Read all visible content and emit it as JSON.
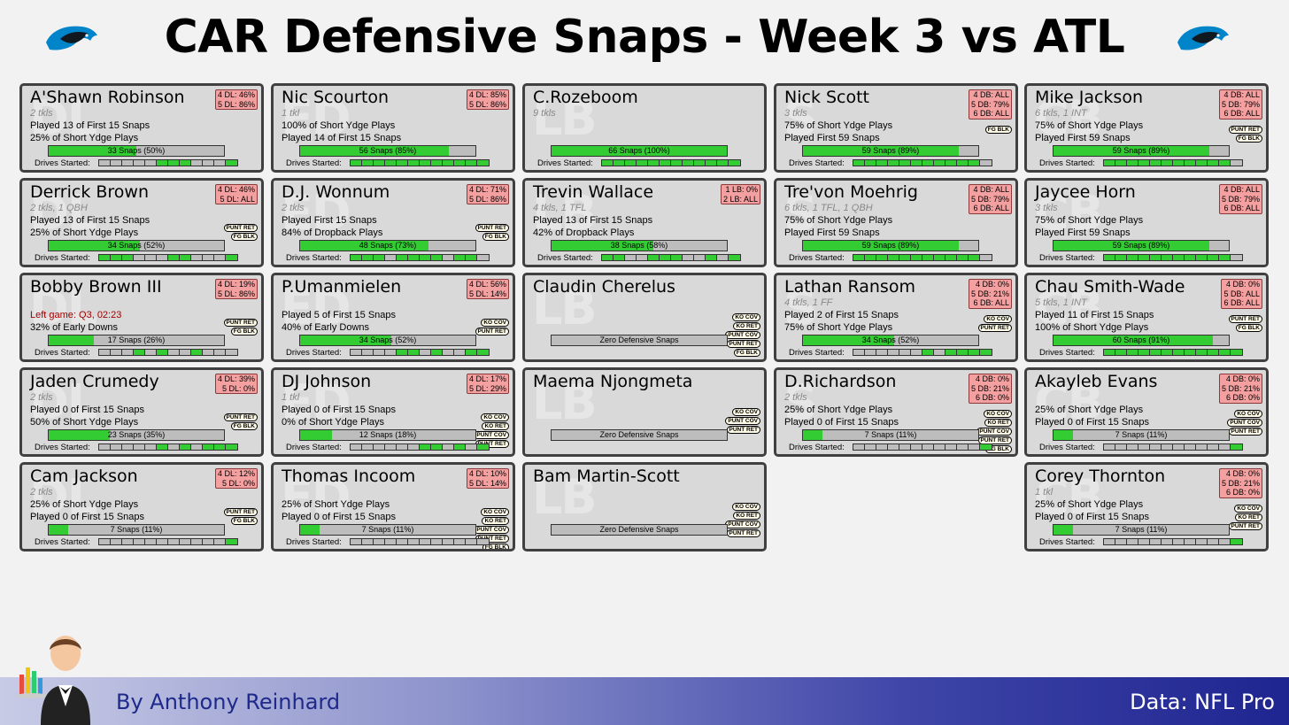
{
  "header": {
    "title": "CAR Defensive Snaps - Week 3 vs ATL"
  },
  "footer": {
    "author": "By Anthony Reinhard",
    "source": "Data: NFL Pro"
  },
  "colors": {
    "snap_fill": "#33cc33",
    "snap_empty": "#bdbdbd",
    "alloc_bg": "#f4a0a0",
    "card_bg": "#d9d9d9",
    "left_game": "#a00000",
    "footer_dark": "#1f2590"
  },
  "players": [
    {
      "name": "A'Shawn Robinson",
      "wm": "DL",
      "sub": "2 tkls",
      "l1": "Played 13 of First 15 Snaps",
      "l2": "25% of Short Ydge Plays",
      "alloc": [
        "4 DL: 46%",
        "5 DL: 86%"
      ],
      "badges": [],
      "snaps": "33 Snaps (50%)",
      "pct": 50,
      "drives": [
        0,
        0,
        0,
        0,
        0,
        1,
        1,
        1,
        0,
        0,
        0,
        1
      ]
    },
    {
      "name": "Nic Scourton",
      "wm": "ED",
      "sub": "1 tkl",
      "l1": "100% of Short Ydge Plays",
      "l2": "Played 14 of First 15 Snaps",
      "alloc": [
        "4 DL: 85%",
        "5 DL: 86%"
      ],
      "badges": [],
      "snaps": "56 Snaps (85%)",
      "pct": 85,
      "drives": [
        1,
        1,
        1,
        1,
        1,
        1,
        1,
        1,
        1,
        1,
        1,
        1
      ]
    },
    {
      "name": "C.Rozeboom",
      "wm": "LB",
      "sub": "9 tkls",
      "l1": "",
      "l2": "",
      "alloc": [],
      "badges": [],
      "snaps": "66 Snaps (100%)",
      "pct": 100,
      "drives": [
        1,
        1,
        1,
        1,
        1,
        1,
        1,
        1,
        1,
        1,
        1,
        1
      ]
    },
    {
      "name": "Nick Scott",
      "wm": "S",
      "sub": "3 tkls",
      "l1": "75% of Short Ydge Plays",
      "l2": "Played First 59 Snaps",
      "alloc": [
        "4 DB: ALL",
        "5 DB: 79%",
        "6 DB: ALL"
      ],
      "badges": [
        "FG BLK"
      ],
      "snaps": "59 Snaps (89%)",
      "pct": 89,
      "drives": [
        1,
        1,
        1,
        1,
        1,
        1,
        1,
        1,
        1,
        1,
        1,
        0
      ]
    },
    {
      "name": "Mike Jackson",
      "wm": "CB",
      "sub": "6 tkls, 1 INT",
      "l1": "75% of Short Ydge Plays",
      "l2": "Played First 59 Snaps",
      "alloc": [
        "4 DB: ALL",
        "5 DB: 79%",
        "6 DB: ALL"
      ],
      "badges": [
        "PUNT RET",
        "FG BLK"
      ],
      "snaps": "59 Snaps (89%)",
      "pct": 89,
      "drives": [
        1,
        1,
        1,
        1,
        1,
        1,
        1,
        1,
        1,
        1,
        1,
        0
      ]
    },
    {
      "name": "Derrick Brown",
      "wm": "DL",
      "sub": "2 tkls, 1 QBH",
      "l1": "Played 13 of First 15 Snaps",
      "l2": "25% of Short Ydge Plays",
      "alloc": [
        "4 DL: 46%",
        "5 DL: ALL"
      ],
      "badges": [
        "PUNT RET",
        "FG BLK"
      ],
      "snaps": "34 Snaps (52%)",
      "pct": 52,
      "drives": [
        1,
        1,
        1,
        0,
        0,
        0,
        1,
        1,
        0,
        0,
        0,
        1
      ]
    },
    {
      "name": "D.J. Wonnum",
      "wm": "ED",
      "sub": "2 tkls",
      "l1": "Played First 15 Snaps",
      "l2": "84% of Dropback Plays",
      "alloc": [
        "4 DL: 71%",
        "5 DL: 86%"
      ],
      "badges": [
        "PUNT RET",
        "FG BLK"
      ],
      "snaps": "48 Snaps (73%)",
      "pct": 73,
      "drives": [
        1,
        1,
        1,
        0,
        1,
        1,
        1,
        1,
        0,
        1,
        1,
        0
      ]
    },
    {
      "name": "Trevin Wallace",
      "wm": "LB",
      "sub": "4 tkls, 1 TFL",
      "l1": "Played 13 of First 15 Snaps",
      "l2": "42% of Dropback Plays",
      "alloc": [
        "1 LB:  0%",
        "2 LB: ALL"
      ],
      "badges": [],
      "snaps": "38 Snaps (58%)",
      "pct": 58,
      "drives": [
        1,
        1,
        0,
        0,
        1,
        1,
        1,
        0,
        0,
        1,
        0,
        1
      ]
    },
    {
      "name": "Tre'von Moehrig",
      "wm": "S",
      "sub": "6 tkls, 1 TFL, 1 QBH",
      "l1": "75% of Short Ydge Plays",
      "l2": "Played First 59 Snaps",
      "alloc": [
        "4 DB: ALL",
        "5 DB: 79%",
        "6 DB: ALL"
      ],
      "badges": [],
      "snaps": "59 Snaps (89%)",
      "pct": 89,
      "drives": [
        1,
        1,
        1,
        1,
        1,
        1,
        1,
        1,
        1,
        1,
        1,
        0
      ]
    },
    {
      "name": "Jaycee Horn",
      "wm": "CB",
      "sub": "3 tkls",
      "l1": "75% of Short Ydge Plays",
      "l2": "Played First 59 Snaps",
      "alloc": [
        "4 DB: ALL",
        "5 DB: 79%",
        "6 DB: ALL"
      ],
      "badges": [],
      "snaps": "59 Snaps (89%)",
      "pct": 89,
      "drives": [
        1,
        1,
        1,
        1,
        1,
        1,
        1,
        1,
        1,
        1,
        1,
        0
      ]
    },
    {
      "name": "Bobby Brown III",
      "wm": "DL",
      "sub": "",
      "left": "Left game: Q3, 02:23",
      "l1": "",
      "l2": "32% of Early Downs",
      "alloc": [
        "4 DL: 19%",
        "5 DL: 86%"
      ],
      "badges": [
        "PUNT RET",
        "FG BLK"
      ],
      "snaps": "17 Snaps (26%)",
      "pct": 26,
      "drives": [
        0,
        0,
        0,
        1,
        0,
        1,
        0,
        0,
        1,
        0,
        0,
        0
      ]
    },
    {
      "name": "P.Umanmielen",
      "wm": "ED",
      "sub": "",
      "l1": "Played 5 of First 15 Snaps",
      "l2": "40% of Early Downs",
      "alloc": [
        "4 DL: 56%",
        "5 DL: 14%"
      ],
      "badges": [
        "KO COV",
        "PUNT RET"
      ],
      "snaps": "34 Snaps (52%)",
      "pct": 52,
      "drives": [
        0,
        0,
        0,
        0,
        1,
        1,
        0,
        1,
        0,
        0,
        1,
        1
      ]
    },
    {
      "name": "Claudin Cherelus",
      "wm": "LB",
      "sub": "",
      "l1": "",
      "l2": "",
      "alloc": [],
      "badges": [
        "KO COV",
        "KO RET",
        "PUNT COV",
        "PUNT RET",
        "FG BLK"
      ],
      "snaps": "Zero Defensive Snaps",
      "pct": 0,
      "drives": null
    },
    {
      "name": "Lathan Ransom",
      "wm": "S",
      "sub": "4 tkls, 1 FF",
      "l1": "Played 2 of First 15 Snaps",
      "l2": "75% of Short Ydge Plays",
      "alloc": [
        "4 DB:  0%",
        "5 DB: 21%",
        "6 DB: ALL"
      ],
      "badges": [
        "KO COV",
        "PUNT RET"
      ],
      "snaps": "34 Snaps (52%)",
      "pct": 52,
      "drives": [
        0,
        0,
        0,
        0,
        0,
        0,
        1,
        0,
        1,
        1,
        1,
        1
      ]
    },
    {
      "name": "Chau Smith-Wade",
      "wm": "CB",
      "sub": "5 tkls, 1 INT",
      "l1": "Played 11 of First 15 Snaps",
      "l2": "100% of Short Ydge Plays",
      "alloc": [
        "4 DB:  0%",
        "5 DB: ALL",
        "6 DB: ALL"
      ],
      "badges": [
        "PUNT RET",
        "FG BLK"
      ],
      "snaps": "60 Snaps (91%)",
      "pct": 91,
      "drives": [
        1,
        1,
        1,
        1,
        1,
        1,
        1,
        1,
        1,
        1,
        1,
        1
      ]
    },
    {
      "name": "Jaden Crumedy",
      "wm": "DL",
      "sub": "2 tkls",
      "l1": "Played 0 of First 15 Snaps",
      "l2": "50% of Short Ydge Plays",
      "alloc": [
        "4 DL: 39%",
        "5 DL:  0%"
      ],
      "badges": [
        "PUNT RET",
        "FG BLK"
      ],
      "snaps": "23 Snaps (35%)",
      "pct": 35,
      "drives": [
        0,
        0,
        0,
        0,
        0,
        1,
        0,
        1,
        0,
        1,
        1,
        1
      ]
    },
    {
      "name": "DJ Johnson",
      "wm": "ED",
      "sub": "1 tkl",
      "l1": "Played 0 of First 15 Snaps",
      "l2": "0% of Short Ydge Plays",
      "alloc": [
        "4 DL: 17%",
        "5 DL: 29%"
      ],
      "badges": [
        "KO COV",
        "KO RET",
        "PUNT COV",
        "PUNT RET"
      ],
      "snaps": "12 Snaps (18%)",
      "pct": 18,
      "drives": [
        0,
        0,
        0,
        0,
        0,
        0,
        1,
        1,
        0,
        1,
        0,
        1
      ]
    },
    {
      "name": "Maema Njongmeta",
      "wm": "LB",
      "sub": "",
      "l1": "",
      "l2": "",
      "alloc": [],
      "badges": [
        "KO COV",
        "PUNT COV",
        "PUNT RET"
      ],
      "snaps": "Zero Defensive Snaps",
      "pct": 0,
      "drives": null
    },
    {
      "name": "D.Richardson",
      "wm": "S",
      "sub": "2 tkls",
      "l1": "25% of Short Ydge Plays",
      "l2": "Played 0 of First 15 Snaps",
      "alloc": [
        "4 DB:  0%",
        "5 DB: 21%",
        "6 DB:  0%"
      ],
      "badges": [
        "KO COV",
        "KO RET",
        "PUNT COV",
        "PUNT RET",
        "FG BLK"
      ],
      "snaps": "7 Snaps (11%)",
      "pct": 11,
      "drives": [
        0,
        0,
        0,
        0,
        0,
        0,
        0,
        0,
        0,
        0,
        0,
        1
      ]
    },
    {
      "name": "Akayleb Evans",
      "wm": "CB",
      "sub": "",
      "l1": "25% of Short Ydge Plays",
      "l2": "Played 0 of First 15 Snaps",
      "alloc": [
        "4 DB:  0%",
        "5 DB: 21%",
        "6 DB:  0%"
      ],
      "badges": [
        "KO COV",
        "PUNT COV",
        "PUNT RET"
      ],
      "snaps": "7 Snaps (11%)",
      "pct": 11,
      "drives": [
        0,
        0,
        0,
        0,
        0,
        0,
        0,
        0,
        0,
        0,
        0,
        1
      ]
    },
    {
      "name": "Cam Jackson",
      "wm": "DL",
      "sub": "2 tkls",
      "l1": "25% of Short Ydge Plays",
      "l2": "Played 0 of First 15 Snaps",
      "alloc": [
        "4 DL: 12%",
        "5 DL:  0%"
      ],
      "badges": [
        "PUNT RET",
        "FG BLK"
      ],
      "snaps": "7 Snaps (11%)",
      "pct": 11,
      "drives": [
        0,
        0,
        0,
        0,
        0,
        0,
        0,
        0,
        0,
        0,
        0,
        1
      ]
    },
    {
      "name": "Thomas Incoom",
      "wm": "ED",
      "sub": "",
      "l1": "25% of Short Ydge Plays",
      "l2": "Played 0 of First 15 Snaps",
      "alloc": [
        "4 DL: 10%",
        "5 DL: 14%"
      ],
      "badges": [
        "KO COV",
        "KO RET",
        "PUNT COV",
        "PUNT RET",
        "FG BLK"
      ],
      "snaps": "7 Snaps (11%)",
      "pct": 11,
      "drives": [
        0,
        0,
        0,
        0,
        0,
        0,
        0,
        0,
        0,
        0,
        0,
        0
      ]
    },
    {
      "name": "Bam Martin-Scott",
      "wm": "LB",
      "sub": "",
      "l1": "",
      "l2": "",
      "alloc": [],
      "badges": [
        "KO COV",
        "KO RET",
        "PUNT COV",
        "PUNT RET"
      ],
      "snaps": "Zero Defensive Snaps",
      "pct": 0,
      "drives": null
    },
    null,
    {
      "name": "Corey Thornton",
      "wm": "CB",
      "sub": "1 tkl",
      "l1": "25% of Short Ydge Plays",
      "l2": "Played 0 of First 15 Snaps",
      "alloc": [
        "4 DB:  0%",
        "5 DB: 21%",
        "6 DB:  0%"
      ],
      "badges": [
        "KO COV",
        "KO RET",
        "PUNT RET"
      ],
      "snaps": "7 Snaps (11%)",
      "pct": 11,
      "drives": [
        0,
        0,
        0,
        0,
        0,
        0,
        0,
        0,
        0,
        0,
        0,
        1
      ]
    }
  ],
  "labels": {
    "drives_started": "Drives Started:"
  }
}
